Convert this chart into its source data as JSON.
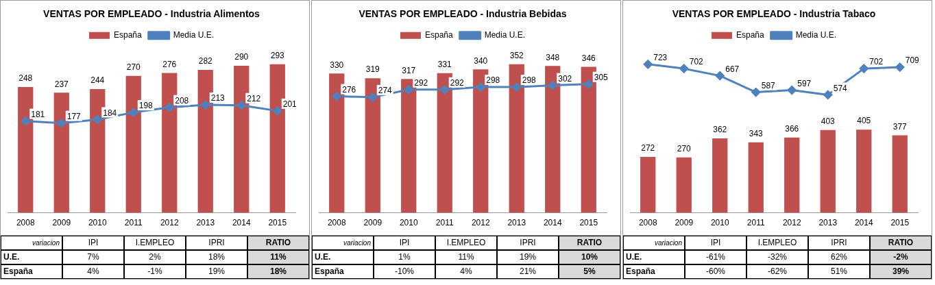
{
  "chart_data": [
    {
      "type": "bar",
      "title": "VENTAS POR EMPLEADO - Industria Alimentos",
      "categories": [
        "2008",
        "2009",
        "2010",
        "2011",
        "2012",
        "2013",
        "2014",
        "2015"
      ],
      "series": [
        {
          "name": "España",
          "color": "#c0504d",
          "values": [
            248,
            237,
            244,
            270,
            276,
            282,
            290,
            293
          ]
        },
        {
          "name": "Media U.E.",
          "type": "line",
          "color": "#4f81bd",
          "values": [
            181,
            177,
            184,
            198,
            208,
            213,
            212,
            201
          ]
        }
      ],
      "data_labels": true,
      "legend": "top",
      "marker": "diamond",
      "grid": false,
      "tick_labels": "x",
      "annotations": [
        "variacion",
        "IPI",
        "I.EMPLEO",
        "IPRI",
        "RATIO",
        "U.E.",
        "7%",
        "2%",
        "18%",
        "11%",
        "España",
        "4%",
        "-1%",
        "19%",
        "18%"
      ]
    },
    {
      "type": "bar",
      "title": "VENTAS POR EMPLEADO - Industria Bebidas",
      "categories": [
        "2008",
        "2009",
        "2010",
        "2011",
        "2012",
        "2013",
        "2014",
        "2015"
      ],
      "series": [
        {
          "name": "España",
          "color": "#c0504d",
          "values": [
            330,
            319,
            317,
            331,
            340,
            352,
            348,
            346
          ]
        },
        {
          "name": "Media U.E.",
          "type": "line",
          "color": "#4f81bd",
          "values": [
            276,
            274,
            292,
            292,
            298,
            298,
            302,
            305
          ]
        }
      ],
      "data_labels": true,
      "legend": "top",
      "marker": "diamond",
      "grid": false,
      "tick_labels": "x",
      "annotations": [
        "variacion",
        "IPI",
        "I.EMPLEO",
        "IPRI",
        "RATIO",
        "U.E.",
        "1%",
        "11%",
        "19%",
        "10%",
        "España",
        "-10%",
        "4%",
        "21%",
        "5%"
      ]
    },
    {
      "type": "bar",
      "title": "VENTAS POR EMPLEADO - Industria Tabaco",
      "categories": [
        "2008",
        "2009",
        "2010",
        "2011",
        "2012",
        "2013",
        "2014",
        "2015"
      ],
      "series": [
        {
          "name": "España",
          "color": "#c0504d",
          "values": [
            272,
            270,
            362,
            343,
            366,
            403,
            405,
            377
          ]
        },
        {
          "name": "Media U.E.",
          "type": "line",
          "color": "#4f81bd",
          "values": [
            723,
            702,
            667,
            587,
            597,
            574,
            702,
            709
          ]
        }
      ],
      "data_labels": true,
      "legend": "top",
      "marker": "diamond",
      "grid": false,
      "tick_labels": "x",
      "annotations": [
        "variacion",
        "IPI",
        "I.EMPLEO",
        "IPRI",
        "RATIO",
        "U.E.",
        "-61%",
        "-32%",
        "62%",
        "-2%",
        "España",
        "-60%",
        "-62%",
        "51%",
        "39%"
      ]
    }
  ]
}
